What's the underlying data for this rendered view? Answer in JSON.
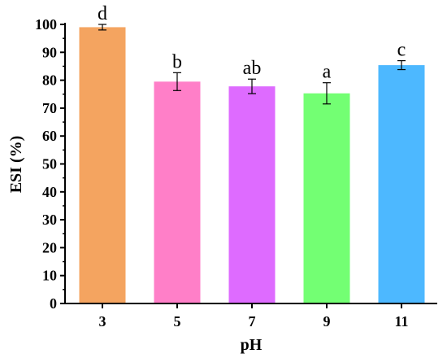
{
  "chart_data": {
    "type": "bar",
    "title": "",
    "xlabel": "pH",
    "ylabel": "ESI (%)",
    "ylim": [
      0,
      100
    ],
    "yticks": [
      0,
      10,
      20,
      30,
      40,
      50,
      60,
      70,
      80,
      90,
      100
    ],
    "grid": false,
    "categories": [
      "3",
      "5",
      "7",
      "9",
      "11"
    ],
    "values": [
      99.0,
      79.5,
      77.8,
      75.3,
      85.4
    ],
    "errors": [
      1.0,
      3.2,
      2.6,
      3.8,
      1.6
    ],
    "significance_labels": [
      "d",
      "b",
      "ab",
      "a",
      "c"
    ],
    "colors": [
      "#f4a460",
      "#ff7fc8",
      "#de6bff",
      "#73ff73",
      "#4db8ff"
    ]
  }
}
